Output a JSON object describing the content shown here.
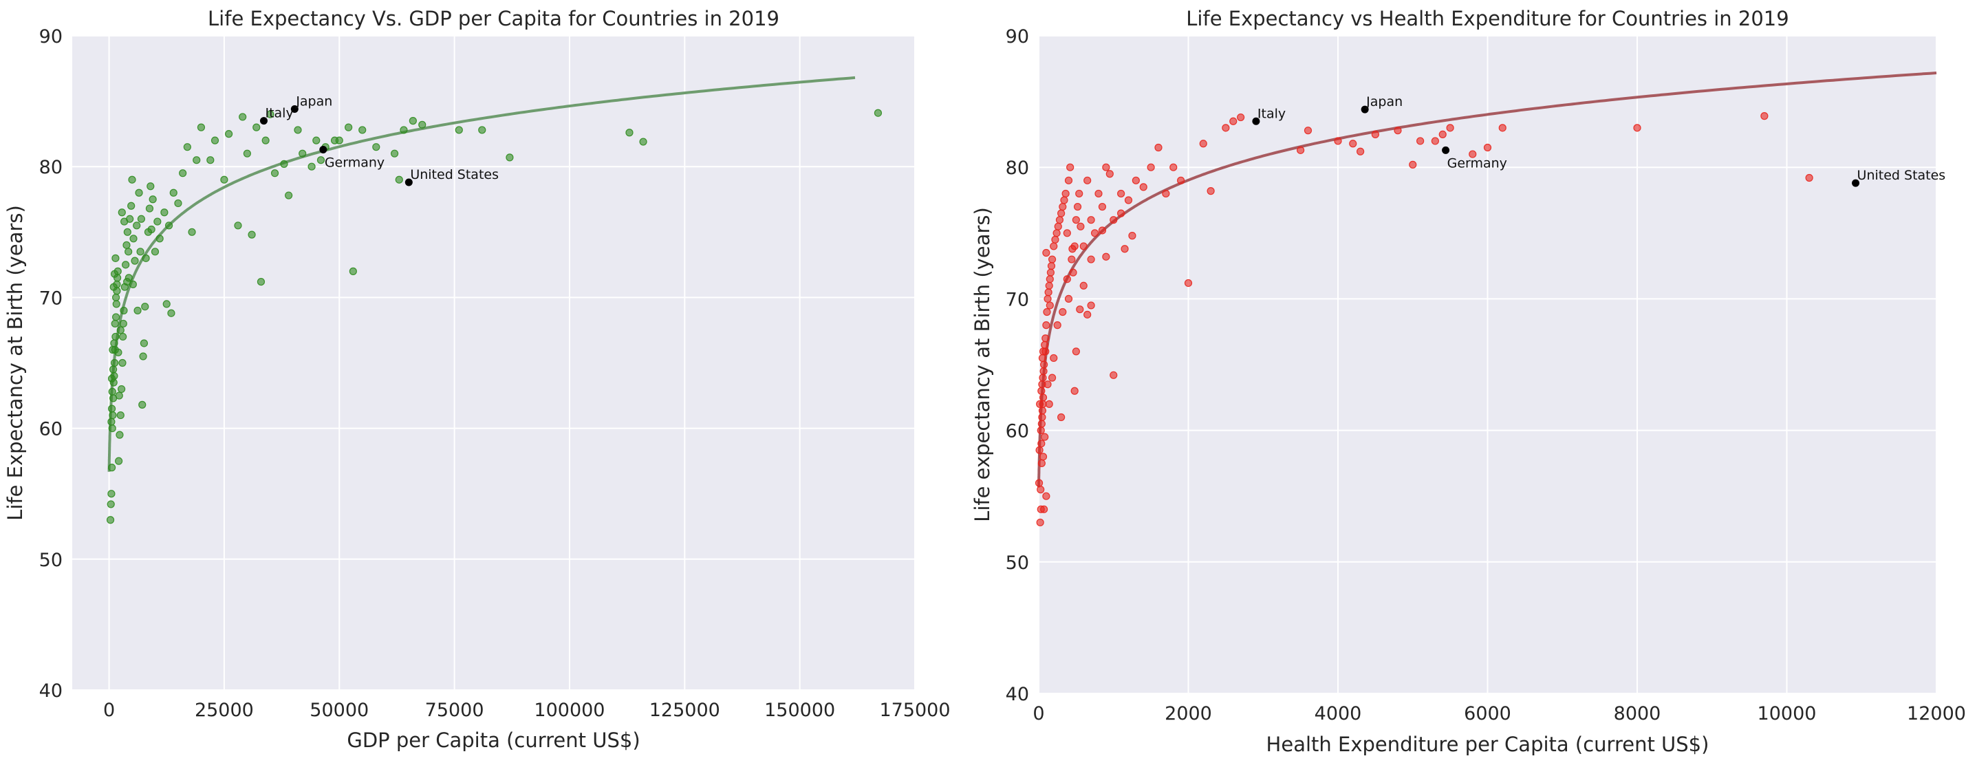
{
  "colors": {
    "background": "#ffffff",
    "axes_face": "#eaeaf2",
    "grid": "#ffffff",
    "left_points": "#2e8b1e",
    "left_fit": "#6e9c6e",
    "right_points": "#e8231c",
    "right_fit": "#a85a5f",
    "highlight": "#000000"
  },
  "chart_data": [
    {
      "type": "scatter",
      "title": "Life Expectancy Vs. GDP per Capita for Countries in 2019",
      "xlabel": "GDP per Capita (current US$)",
      "ylabel": "Life Expectancy at Birth (years)",
      "xlim": [
        -8000,
        175000
      ],
      "ylim": [
        40,
        90
      ],
      "xticks": [
        0,
        25000,
        50000,
        75000,
        100000,
        125000,
        150000,
        175000
      ],
      "xtick_labels": [
        "0",
        "25000",
        "50000",
        "75000",
        "100000",
        "125000",
        "150000",
        "175000"
      ],
      "yticks": [
        40,
        50,
        60,
        70,
        80,
        90
      ],
      "ytick_labels": [
        "40",
        "50",
        "60",
        "70",
        "80",
        "90"
      ],
      "grid": true,
      "points": [
        [
          300,
          53
        ],
        [
          400,
          54.2
        ],
        [
          500,
          55
        ],
        [
          600,
          57
        ],
        [
          700,
          60
        ],
        [
          800,
          61
        ],
        [
          900,
          62.3
        ],
        [
          1000,
          63.5
        ],
        [
          1100,
          64
        ],
        [
          1200,
          65
        ],
        [
          1300,
          66
        ],
        [
          1400,
          67
        ],
        [
          1500,
          68.5
        ],
        [
          1600,
          69.5
        ],
        [
          1700,
          70.5
        ],
        [
          1800,
          71.5
        ],
        [
          500,
          60.5
        ],
        [
          600,
          61.5
        ],
        [
          700,
          62.8
        ],
        [
          900,
          64.5
        ],
        [
          1100,
          66.5
        ],
        [
          1300,
          68
        ],
        [
          1500,
          70
        ],
        [
          1700,
          71
        ],
        [
          1900,
          72
        ],
        [
          2100,
          57.5
        ],
        [
          2300,
          59.5
        ],
        [
          2500,
          61
        ],
        [
          2700,
          63
        ],
        [
          2900,
          65
        ],
        [
          3000,
          67
        ],
        [
          3200,
          69
        ],
        [
          3400,
          70.8
        ],
        [
          3600,
          72.5
        ],
        [
          3800,
          74
        ],
        [
          4000,
          75
        ],
        [
          4200,
          73.5
        ],
        [
          4500,
          76
        ],
        [
          4800,
          77
        ],
        [
          5000,
          79
        ],
        [
          5300,
          74.5
        ],
        [
          5600,
          72.8
        ],
        [
          6000,
          75.5
        ],
        [
          6500,
          78
        ],
        [
          7000,
          76
        ],
        [
          7200,
          61.8
        ],
        [
          7400,
          65.5
        ],
        [
          7600,
          66.5
        ],
        [
          7800,
          69.3
        ],
        [
          8000,
          73
        ],
        [
          8500,
          75
        ],
        [
          9000,
          78.5
        ],
        [
          9500,
          77.5
        ],
        [
          10000,
          73.5
        ],
        [
          10500,
          75.8
        ],
        [
          11000,
          74.5
        ],
        [
          12000,
          76.5
        ],
        [
          12500,
          69.5
        ],
        [
          13000,
          75.5
        ],
        [
          13500,
          68.8
        ],
        [
          14000,
          78
        ],
        [
          15000,
          77.2
        ],
        [
          16000,
          79.5
        ],
        [
          17000,
          81.5
        ],
        [
          18000,
          75
        ],
        [
          19000,
          80.5
        ],
        [
          20000,
          83
        ],
        [
          22000,
          80.5
        ],
        [
          23000,
          82
        ],
        [
          25000,
          79
        ],
        [
          26000,
          82.5
        ],
        [
          28000,
          75.5
        ],
        [
          29000,
          83.8
        ],
        [
          30000,
          81
        ],
        [
          31000,
          74.8
        ],
        [
          32000,
          83
        ],
        [
          33000,
          71.2
        ],
        [
          34000,
          82
        ],
        [
          35000,
          84
        ],
        [
          36000,
          79.5
        ],
        [
          38000,
          80.2
        ],
        [
          39000,
          77.8
        ],
        [
          41000,
          82.8
        ],
        [
          42000,
          81
        ],
        [
          44000,
          80
        ],
        [
          45000,
          82
        ],
        [
          46000,
          80.5
        ],
        [
          47000,
          81.5
        ],
        [
          49000,
          82
        ],
        [
          50000,
          82
        ],
        [
          52000,
          83
        ],
        [
          53000,
          72
        ],
        [
          55000,
          82.8
        ],
        [
          58000,
          81.5
        ],
        [
          62000,
          81
        ],
        [
          63000,
          79
        ],
        [
          64000,
          82.8
        ],
        [
          66000,
          83.5
        ],
        [
          68000,
          83.2
        ],
        [
          76000,
          82.8
        ],
        [
          81000,
          82.8
        ],
        [
          87000,
          80.7
        ],
        [
          113000,
          82.6
        ],
        [
          116000,
          81.9
        ],
        [
          167000,
          84.1
        ],
        [
          2000,
          65.8
        ],
        [
          2500,
          67.5
        ],
        [
          3100,
          68
        ],
        [
          2200,
          62.5
        ],
        [
          1000,
          70.8
        ],
        [
          1200,
          71.8
        ],
        [
          1400,
          73
        ],
        [
          4300,
          71.5
        ],
        [
          5200,
          71
        ],
        [
          6200,
          69
        ],
        [
          6800,
          73.5
        ],
        [
          8800,
          76.8
        ],
        [
          9200,
          75.2
        ],
        [
          3300,
          75.8
        ],
        [
          2800,
          76.5
        ],
        [
          3900,
          71.2
        ],
        [
          600,
          63.8
        ],
        [
          800,
          66
        ]
      ],
      "fit": {
        "type": "logarithmic",
        "x_range": [
          0,
          162000
        ]
      },
      "highlights": [
        {
          "label": "Italy",
          "x": 33600,
          "y": 83.5
        },
        {
          "label": "Japan",
          "x": 40300,
          "y": 84.4
        },
        {
          "label": "Germany",
          "x": 46500,
          "y": 81.3
        },
        {
          "label": "United States",
          "x": 65100,
          "y": 78.8
        }
      ]
    },
    {
      "type": "scatter",
      "title": "Life Expectancy vs Health Expenditure for Countries in 2019",
      "xlabel": "Health Expenditure per Capita (current US$)",
      "ylabel": "Life expectancy at Birth (years)",
      "xlim": [
        0,
        12000
      ],
      "ylim": [
        40,
        90
      ],
      "xticks": [
        0,
        2000,
        4000,
        6000,
        8000,
        10000,
        12000
      ],
      "xtick_labels": [
        "0",
        "2000",
        "4000",
        "6000",
        "8000",
        "10000",
        "12000"
      ],
      "yticks": [
        40,
        50,
        60,
        70,
        80,
        90
      ],
      "ytick_labels": [
        "40",
        "50",
        "60",
        "70",
        "80",
        "90"
      ],
      "grid": true,
      "points": [
        [
          20,
          53
        ],
        [
          30,
          54
        ],
        [
          25,
          55.5
        ],
        [
          40,
          57.5
        ],
        [
          35,
          59
        ],
        [
          30,
          60
        ],
        [
          40,
          60.5
        ],
        [
          45,
          61
        ],
        [
          50,
          61.5
        ],
        [
          55,
          62
        ],
        [
          60,
          62.5
        ],
        [
          35,
          63
        ],
        [
          45,
          63.5
        ],
        [
          55,
          64
        ],
        [
          65,
          64.5
        ],
        [
          70,
          65
        ],
        [
          50,
          65.5
        ],
        [
          60,
          66
        ],
        [
          80,
          66.5
        ],
        [
          90,
          67
        ],
        [
          100,
          68
        ],
        [
          110,
          69
        ],
        [
          120,
          70
        ],
        [
          130,
          70.5
        ],
        [
          140,
          71
        ],
        [
          150,
          71.5
        ],
        [
          160,
          72
        ],
        [
          170,
          72.5
        ],
        [
          180,
          73
        ],
        [
          100,
          73.5
        ],
        [
          200,
          74
        ],
        [
          220,
          74.5
        ],
        [
          240,
          75
        ],
        [
          260,
          75.5
        ],
        [
          280,
          76
        ],
        [
          300,
          76.5
        ],
        [
          320,
          77
        ],
        [
          340,
          77.5
        ],
        [
          360,
          78
        ],
        [
          380,
          75
        ],
        [
          400,
          79
        ],
        [
          420,
          80
        ],
        [
          440,
          73
        ],
        [
          460,
          72
        ],
        [
          480,
          74
        ],
        [
          500,
          76
        ],
        [
          520,
          77
        ],
        [
          540,
          78
        ],
        [
          560,
          75.5
        ],
        [
          600,
          74
        ],
        [
          650,
          79
        ],
        [
          700,
          76
        ],
        [
          750,
          75
        ],
        [
          800,
          78
        ],
        [
          850,
          77
        ],
        [
          900,
          80
        ],
        [
          950,
          79.5
        ],
        [
          1000,
          76
        ],
        [
          1100,
          78
        ],
        [
          1200,
          77.5
        ],
        [
          1300,
          79
        ],
        [
          1400,
          78.5
        ],
        [
          1500,
          80
        ],
        [
          1600,
          81.5
        ],
        [
          1700,
          78
        ],
        [
          1800,
          80
        ],
        [
          1900,
          79
        ],
        [
          2000,
          71.2
        ],
        [
          2200,
          81.8
        ],
        [
          2300,
          78.2
        ],
        [
          2500,
          83
        ],
        [
          2600,
          83.5
        ],
        [
          2700,
          83.8
        ],
        [
          3500,
          81.3
        ],
        [
          3600,
          82.8
        ],
        [
          4000,
          82
        ],
        [
          4200,
          81.8
        ],
        [
          4300,
          81.2
        ],
        [
          4500,
          82.5
        ],
        [
          4800,
          82.8
        ],
        [
          5000,
          80.2
        ],
        [
          5100,
          82
        ],
        [
          5300,
          82
        ],
        [
          5400,
          82.5
        ],
        [
          5500,
          83
        ],
        [
          5800,
          81
        ],
        [
          6000,
          81.5
        ],
        [
          6200,
          83
        ],
        [
          8000,
          83
        ],
        [
          9700,
          83.9
        ],
        [
          10300,
          79.2
        ],
        [
          1000,
          64.2
        ],
        [
          700,
          69.5
        ],
        [
          500,
          66
        ],
        [
          480,
          63
        ],
        [
          300,
          61
        ],
        [
          180,
          64
        ],
        [
          200,
          65.5
        ],
        [
          250,
          68
        ],
        [
          320,
          69
        ],
        [
          150,
          69.5
        ],
        [
          90,
          66
        ],
        [
          120,
          63.5
        ],
        [
          140,
          62
        ],
        [
          60,
          58
        ],
        [
          80,
          59.5
        ],
        [
          70,
          54
        ],
        [
          100,
          55
        ],
        [
          5,
          56
        ],
        [
          10,
          58.5
        ],
        [
          15,
          62
        ],
        [
          400,
          70
        ],
        [
          600,
          71
        ],
        [
          700,
          73
        ],
        [
          450,
          73.8
        ],
        [
          850,
          75.2
        ],
        [
          1100,
          76.5
        ],
        [
          1250,
          74.8
        ],
        [
          380,
          71.5
        ],
        [
          550,
          69.2
        ],
        [
          650,
          68.8
        ],
        [
          900,
          73.2
        ],
        [
          1150,
          73.8
        ]
      ],
      "fit": {
        "type": "logarithmic",
        "x_range": [
          0,
          12000
        ]
      },
      "highlights": [
        {
          "label": "Italy",
          "x": 2905,
          "y": 83.5
        },
        {
          "label": "Japan",
          "x": 4360,
          "y": 84.4
        },
        {
          "label": "Germany",
          "x": 5440,
          "y": 81.3
        },
        {
          "label": "United States",
          "x": 10920,
          "y": 78.8
        }
      ]
    }
  ]
}
